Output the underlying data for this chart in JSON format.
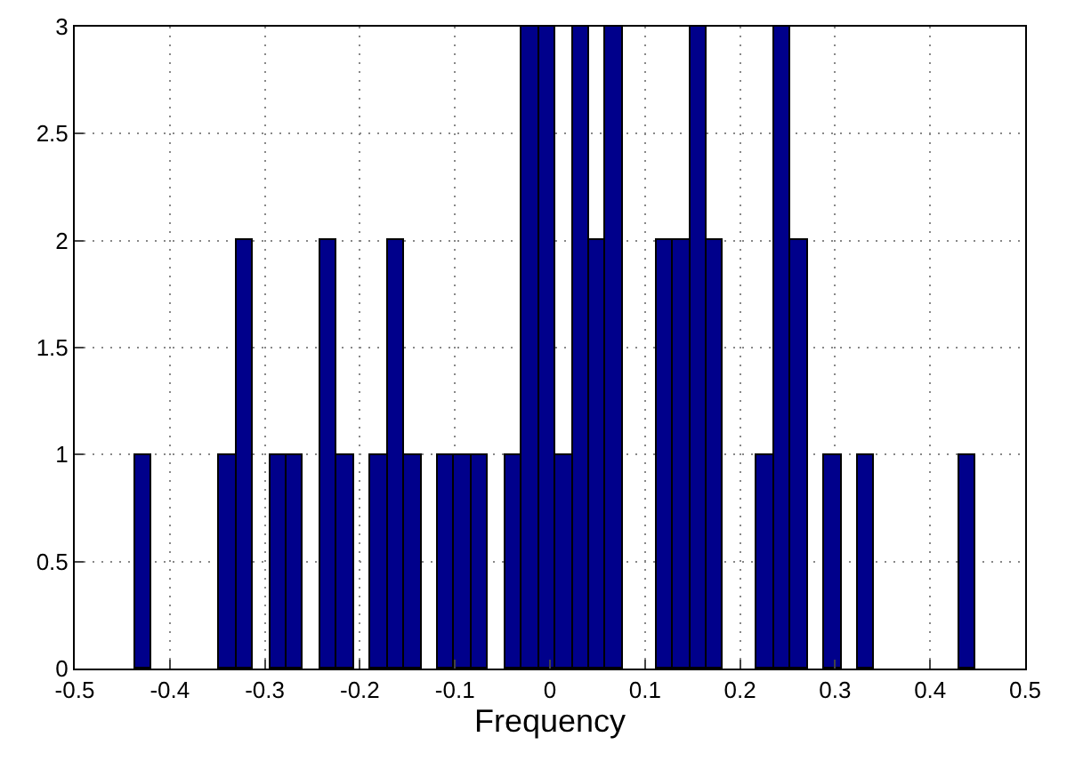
{
  "chart_data": {
    "type": "histogram",
    "xlabel": "Frequency",
    "color": "#00008b",
    "bins": [
      -0.4363,
      -0.4186,
      -0.4009,
      -0.3833,
      -0.3656,
      -0.3479,
      -0.3302,
      -0.3125,
      -0.2949,
      -0.2772,
      -0.2595,
      -0.2418,
      -0.2241,
      -0.2065,
      -0.1888,
      -0.1711,
      -0.1534,
      -0.1357,
      -0.1181,
      -0.1004,
      -0.0827,
      -0.065,
      -0.0473,
      -0.0297,
      -0.012,
      0.0057,
      0.0234,
      0.0411,
      0.0587,
      0.0764,
      0.0941,
      0.1118,
      0.1295,
      0.1471,
      0.1648,
      0.1825,
      0.2002,
      0.2179,
      0.2355,
      0.2532,
      0.2709,
      0.2886,
      0.3063,
      0.3239,
      0.3416,
      0.3593,
      0.377,
      0.3947,
      0.4123,
      0.43,
      0.4477
    ],
    "values": [
      1,
      0,
      0,
      0,
      0,
      1,
      2,
      0,
      1,
      1,
      0,
      2,
      1,
      0,
      1,
      2,
      1,
      0,
      1,
      1,
      1,
      0,
      1,
      3,
      3,
      1,
      3,
      2,
      3,
      0,
      0,
      2,
      2,
      3,
      2,
      0,
      0,
      1,
      3,
      2,
      0,
      1,
      0,
      1,
      0,
      0,
      0,
      0,
      0,
      1
    ],
    "xlim": [
      -0.5,
      0.5
    ],
    "xticks": [
      {
        "value": -0.5,
        "label": "-0.5"
      },
      {
        "value": -0.4,
        "label": "-0.4"
      },
      {
        "value": -0.3,
        "label": "-0.3"
      },
      {
        "value": -0.2,
        "label": "-0.2"
      },
      {
        "value": -0.1,
        "label": "-0.1"
      },
      0,
      0.1,
      0.2,
      0.3,
      0.4,
      0.5
    ],
    "ylim": [
      0,
      3
    ],
    "yticks": [
      0,
      0.5,
      1,
      1.5,
      2,
      2.5,
      3
    ],
    "grid": true
  }
}
